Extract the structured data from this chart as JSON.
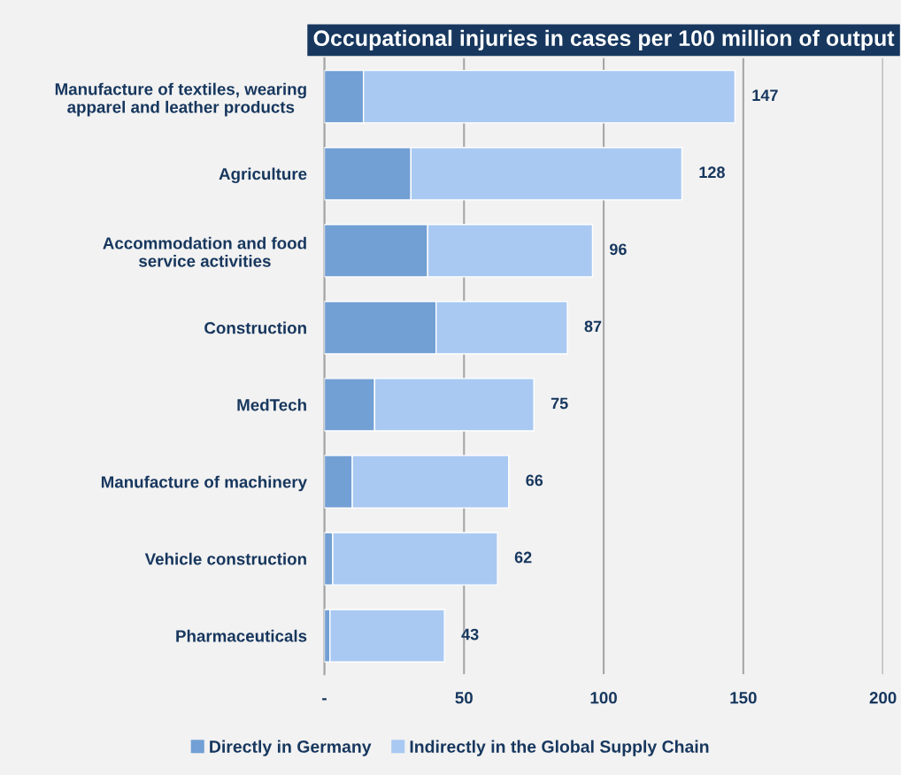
{
  "chart_data": {
    "type": "bar",
    "orientation": "horizontal",
    "stacked": true,
    "title": "Occupational injuries in cases per 100 million of output",
    "categories": [
      "Manufacture of textiles, wearing\napparel and leather products",
      "Agriculture",
      "Accommodation and food\nservice activities",
      "Construction",
      "MedTech",
      "Manufacture of machinery",
      "Vehicle construction",
      "Pharmaceuticals"
    ],
    "series": [
      {
        "name": "Directly in Germany",
        "color": "#729fd4",
        "values": [
          14,
          31,
          37,
          40,
          18,
          10,
          3,
          2
        ]
      },
      {
        "name": "Indirectly in the Global Supply Chain",
        "color": "#a9c9f2",
        "values": [
          133,
          97,
          59,
          47,
          57,
          56,
          59,
          41
        ]
      }
    ],
    "totals": [
      "147",
      "128",
      "96",
      "87",
      "75",
      "66",
      "62",
      "43"
    ],
    "xlim": [
      0,
      200
    ],
    "xticks": [
      {
        "value": 0,
        "label": "-"
      },
      50,
      100,
      150,
      200
    ],
    "grid": "x",
    "legend": "bottom"
  }
}
